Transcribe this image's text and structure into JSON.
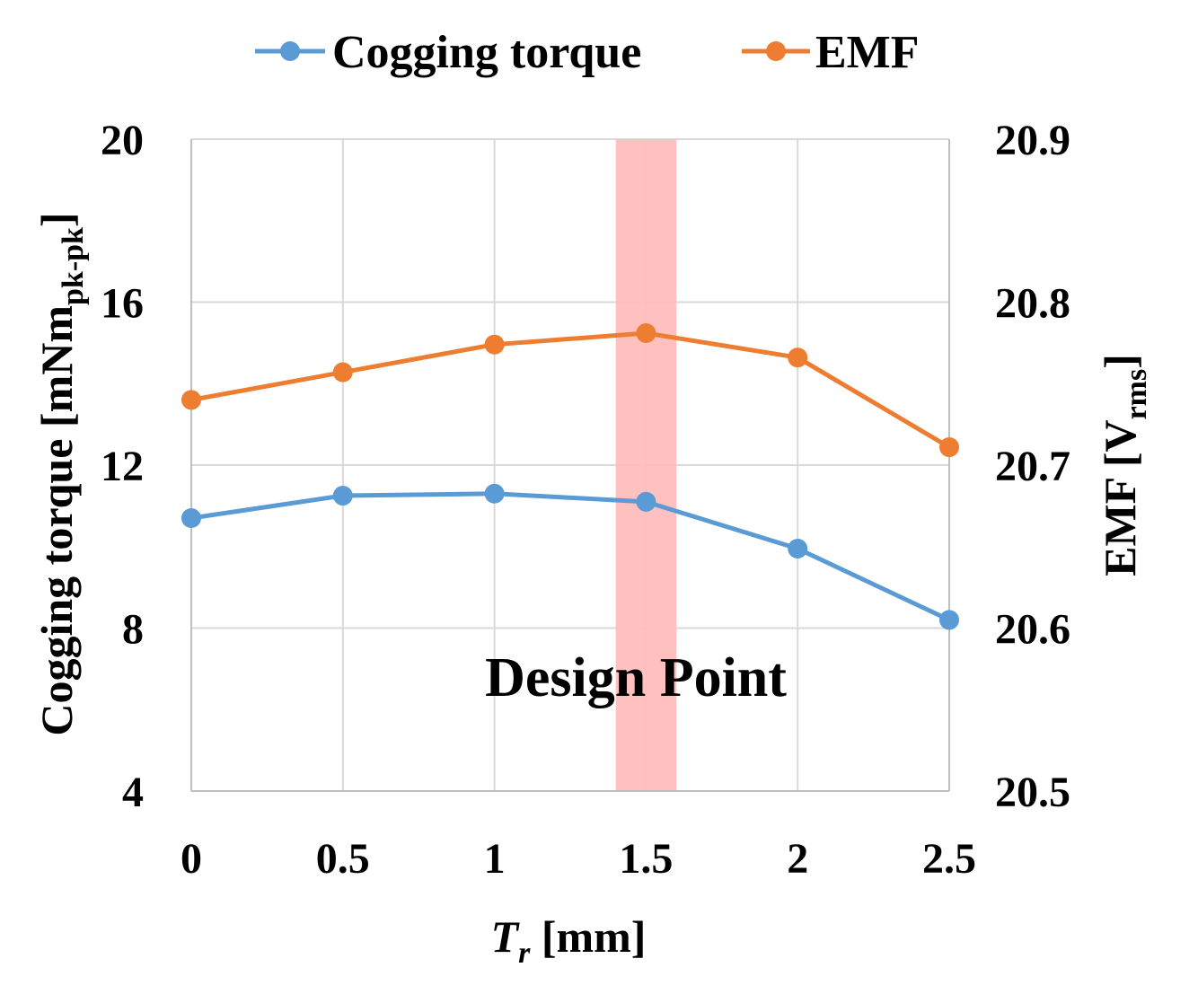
{
  "chart_data": {
    "type": "line",
    "x": [
      0,
      0.5,
      1,
      1.5,
      2,
      2.5
    ],
    "x_tick_labels": [
      "0",
      "0.5",
      "1",
      "1.5",
      "2",
      "2.5"
    ],
    "xlim": [
      0,
      2.5
    ],
    "xlabel": {
      "main": "T",
      "sub": "r",
      "rest": " [mm]"
    },
    "ylabel_left": {
      "main": "Cogging torque [mNm",
      "sub": "pk-pk",
      "rest": "]"
    },
    "ylabel_right": {
      "main": "EMF [V",
      "sub": "rms",
      "rest": "]"
    },
    "y_left_lim": [
      4,
      20
    ],
    "y_left_ticks": [
      4,
      8,
      12,
      16,
      20
    ],
    "y_left_tick_labels": [
      "4",
      "8",
      "12",
      "16",
      "20"
    ],
    "y_right_lim": [
      20.5,
      20.9
    ],
    "y_right_ticks": [
      20.5,
      20.6,
      20.7,
      20.8,
      20.9
    ],
    "y_right_tick_labels": [
      "20.5",
      "20.6",
      "20.7",
      "20.8",
      "20.9"
    ],
    "grid": true,
    "legend_position": "top",
    "series": [
      {
        "name": "Cogging torque",
        "axis": "left",
        "color": "#5b9bd5",
        "values": [
          10.7,
          11.25,
          11.3,
          11.1,
          9.95,
          8.2
        ]
      },
      {
        "name": "EMF",
        "axis": "right",
        "color": "#ed7d31",
        "values": [
          20.74,
          20.757,
          20.774,
          20.781,
          20.766,
          20.711
        ]
      }
    ],
    "highlight_band": {
      "x_range": [
        1.4,
        1.6
      ],
      "color": "#ffbdbd",
      "label": "Design Point",
      "label_color": "#c00000"
    }
  }
}
